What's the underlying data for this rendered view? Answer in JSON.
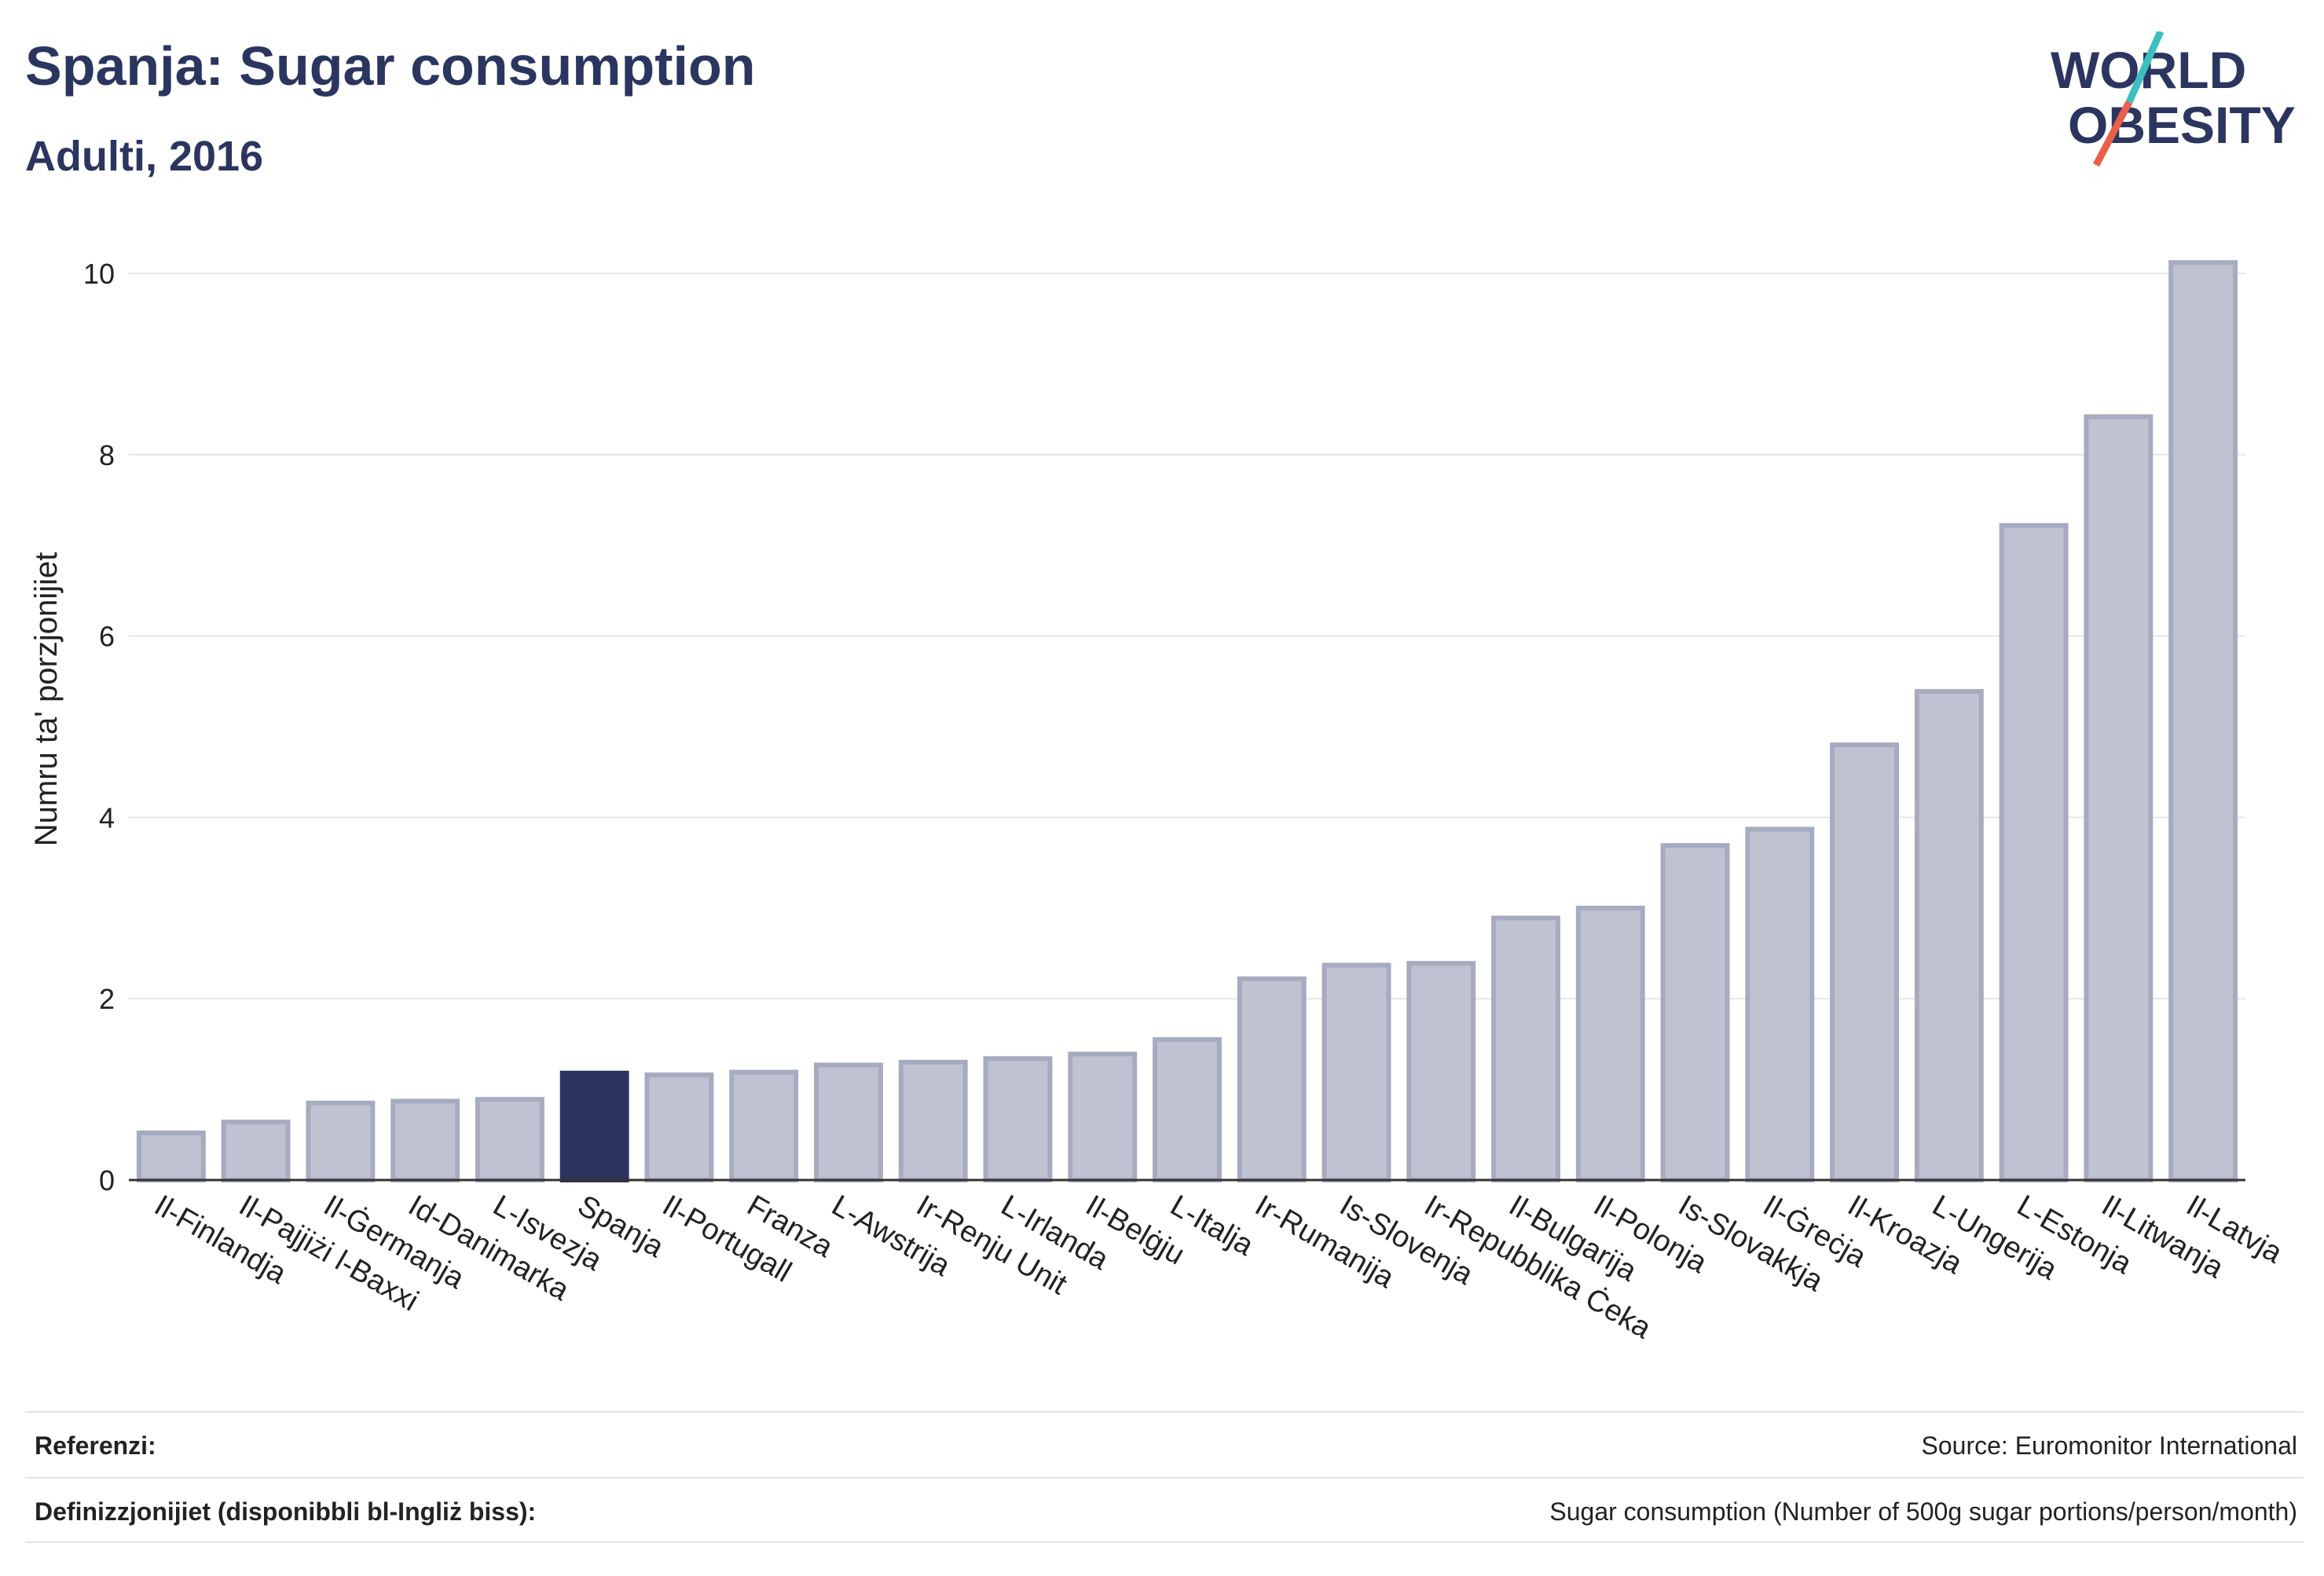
{
  "header": {
    "title": "Spanja: Sugar consumption",
    "subtitle": "Adulti, 2016"
  },
  "logo": {
    "line1": "WORLD",
    "line2": "OBESITY",
    "accent_teal": "#3bbfbf",
    "accent_red": "#e8604c",
    "text_color": "#2b3560"
  },
  "chart_data": {
    "type": "bar",
    "ylabel": "Numru ta' porzjonijiet",
    "xlabel": "",
    "ylim": [
      0,
      10.5
    ],
    "yticks": [
      0,
      2,
      4,
      6,
      8,
      10
    ],
    "grid": true,
    "highlight_category": "Spanja",
    "highlight_color": "#2b3560",
    "bar_color": "#bfc2d1",
    "bar_edge_color": "#a7abc0",
    "categories": [
      "Il-Finlandja",
      "Il-Pajjiżi l-Baxxi",
      "Il-Ġermanja",
      "Id-Danimarka",
      "L-Isvezja",
      "Spanja",
      "Il-Portugall",
      "Franza",
      "L-Awstrija",
      "Ir-Renju Unit",
      "L-Irlanda",
      "Il-Belġju",
      "L-Italja",
      "Ir-Rumanija",
      "Is-Slovenja",
      "Ir-Repubblika Ċeka",
      "Il-Bulgarija",
      "Il-Polonja",
      "Is-Slovakkja",
      "Il-Ġreċja",
      "Il-Kroazja",
      "L-Ungerija",
      "L-Estonja",
      "Il-Litwanja",
      "Il-Latvja"
    ],
    "values": [
      0.52,
      0.64,
      0.85,
      0.87,
      0.89,
      1.18,
      1.16,
      1.19,
      1.27,
      1.3,
      1.34,
      1.39,
      1.55,
      2.22,
      2.37,
      2.39,
      2.89,
      3.0,
      3.69,
      3.87,
      4.8,
      5.39,
      7.22,
      8.42,
      10.12
    ]
  },
  "footer": {
    "references_label": "Referenzi:",
    "references_value": "Source: Euromonitor International",
    "definitions_label": "Definizzjonijiet (disponibbli bl-Ingliż biss):",
    "definitions_value": "Sugar consumption (Number of 500g sugar portions/person/month)"
  }
}
